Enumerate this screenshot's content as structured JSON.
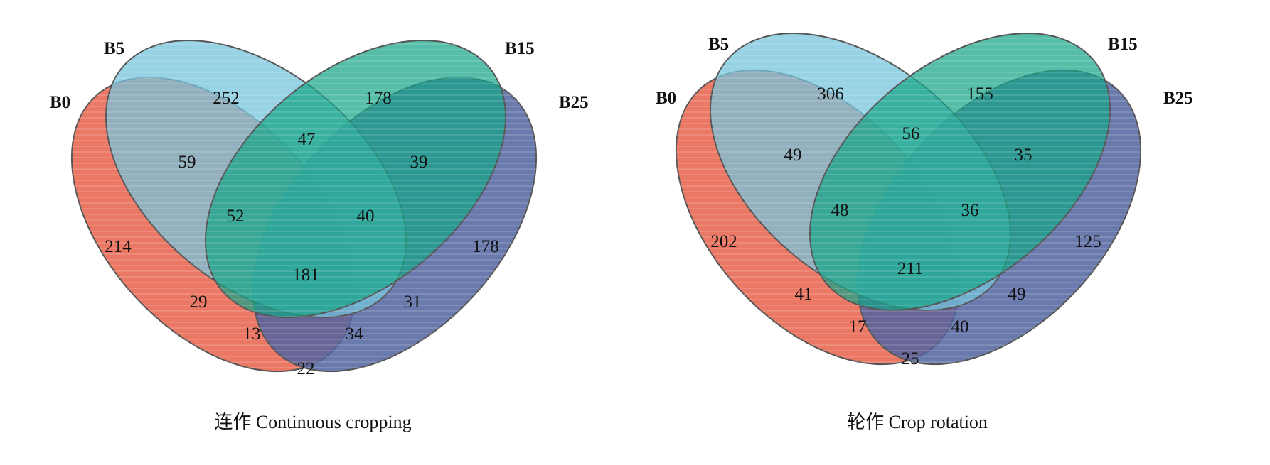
{
  "diagrams": [
    {
      "caption": "连作 Continuous cropping",
      "sets": [
        {
          "name": "B0",
          "color": "#e8604a"
        },
        {
          "name": "B5",
          "color": "#74c3dc"
        },
        {
          "name": "B15",
          "color": "#15a487"
        },
        {
          "name": "B25",
          "color": "#51639f"
        }
      ],
      "regions": {
        "B0": "214",
        "B5": "252",
        "B15": "178",
        "B25": "178",
        "B0_B5": "59",
        "B5_B15": "47",
        "B15_B25": "39",
        "B0_B5_B15": "52",
        "B5_B15_B25": "40",
        "B0_B15": "29",
        "B5_B25": "31",
        "B0_B5_B15_B25": "181",
        "B0_B15_B25": "13",
        "B0_B5_B25": "34",
        "B0_B25": "22"
      }
    },
    {
      "caption": "轮作 Crop rotation",
      "sets": [
        {
          "name": "B0",
          "color": "#e8604a"
        },
        {
          "name": "B5",
          "color": "#74c3dc"
        },
        {
          "name": "B15",
          "color": "#15a487"
        },
        {
          "name": "B25",
          "color": "#51639f"
        }
      ],
      "regions": {
        "B0": "202",
        "B5": "306",
        "B15": "155",
        "B25": "125",
        "B0_B5": "49",
        "B5_B15": "56",
        "B15_B25": "35",
        "B0_B5_B15": "48",
        "B5_B15_B25": "36",
        "B0_B15": "41",
        "B5_B25": "49",
        "B0_B5_B15_B25": "211",
        "B0_B15_B25": "17",
        "B0_B5_B25": "40",
        "B0_B25": "25"
      }
    }
  ]
}
